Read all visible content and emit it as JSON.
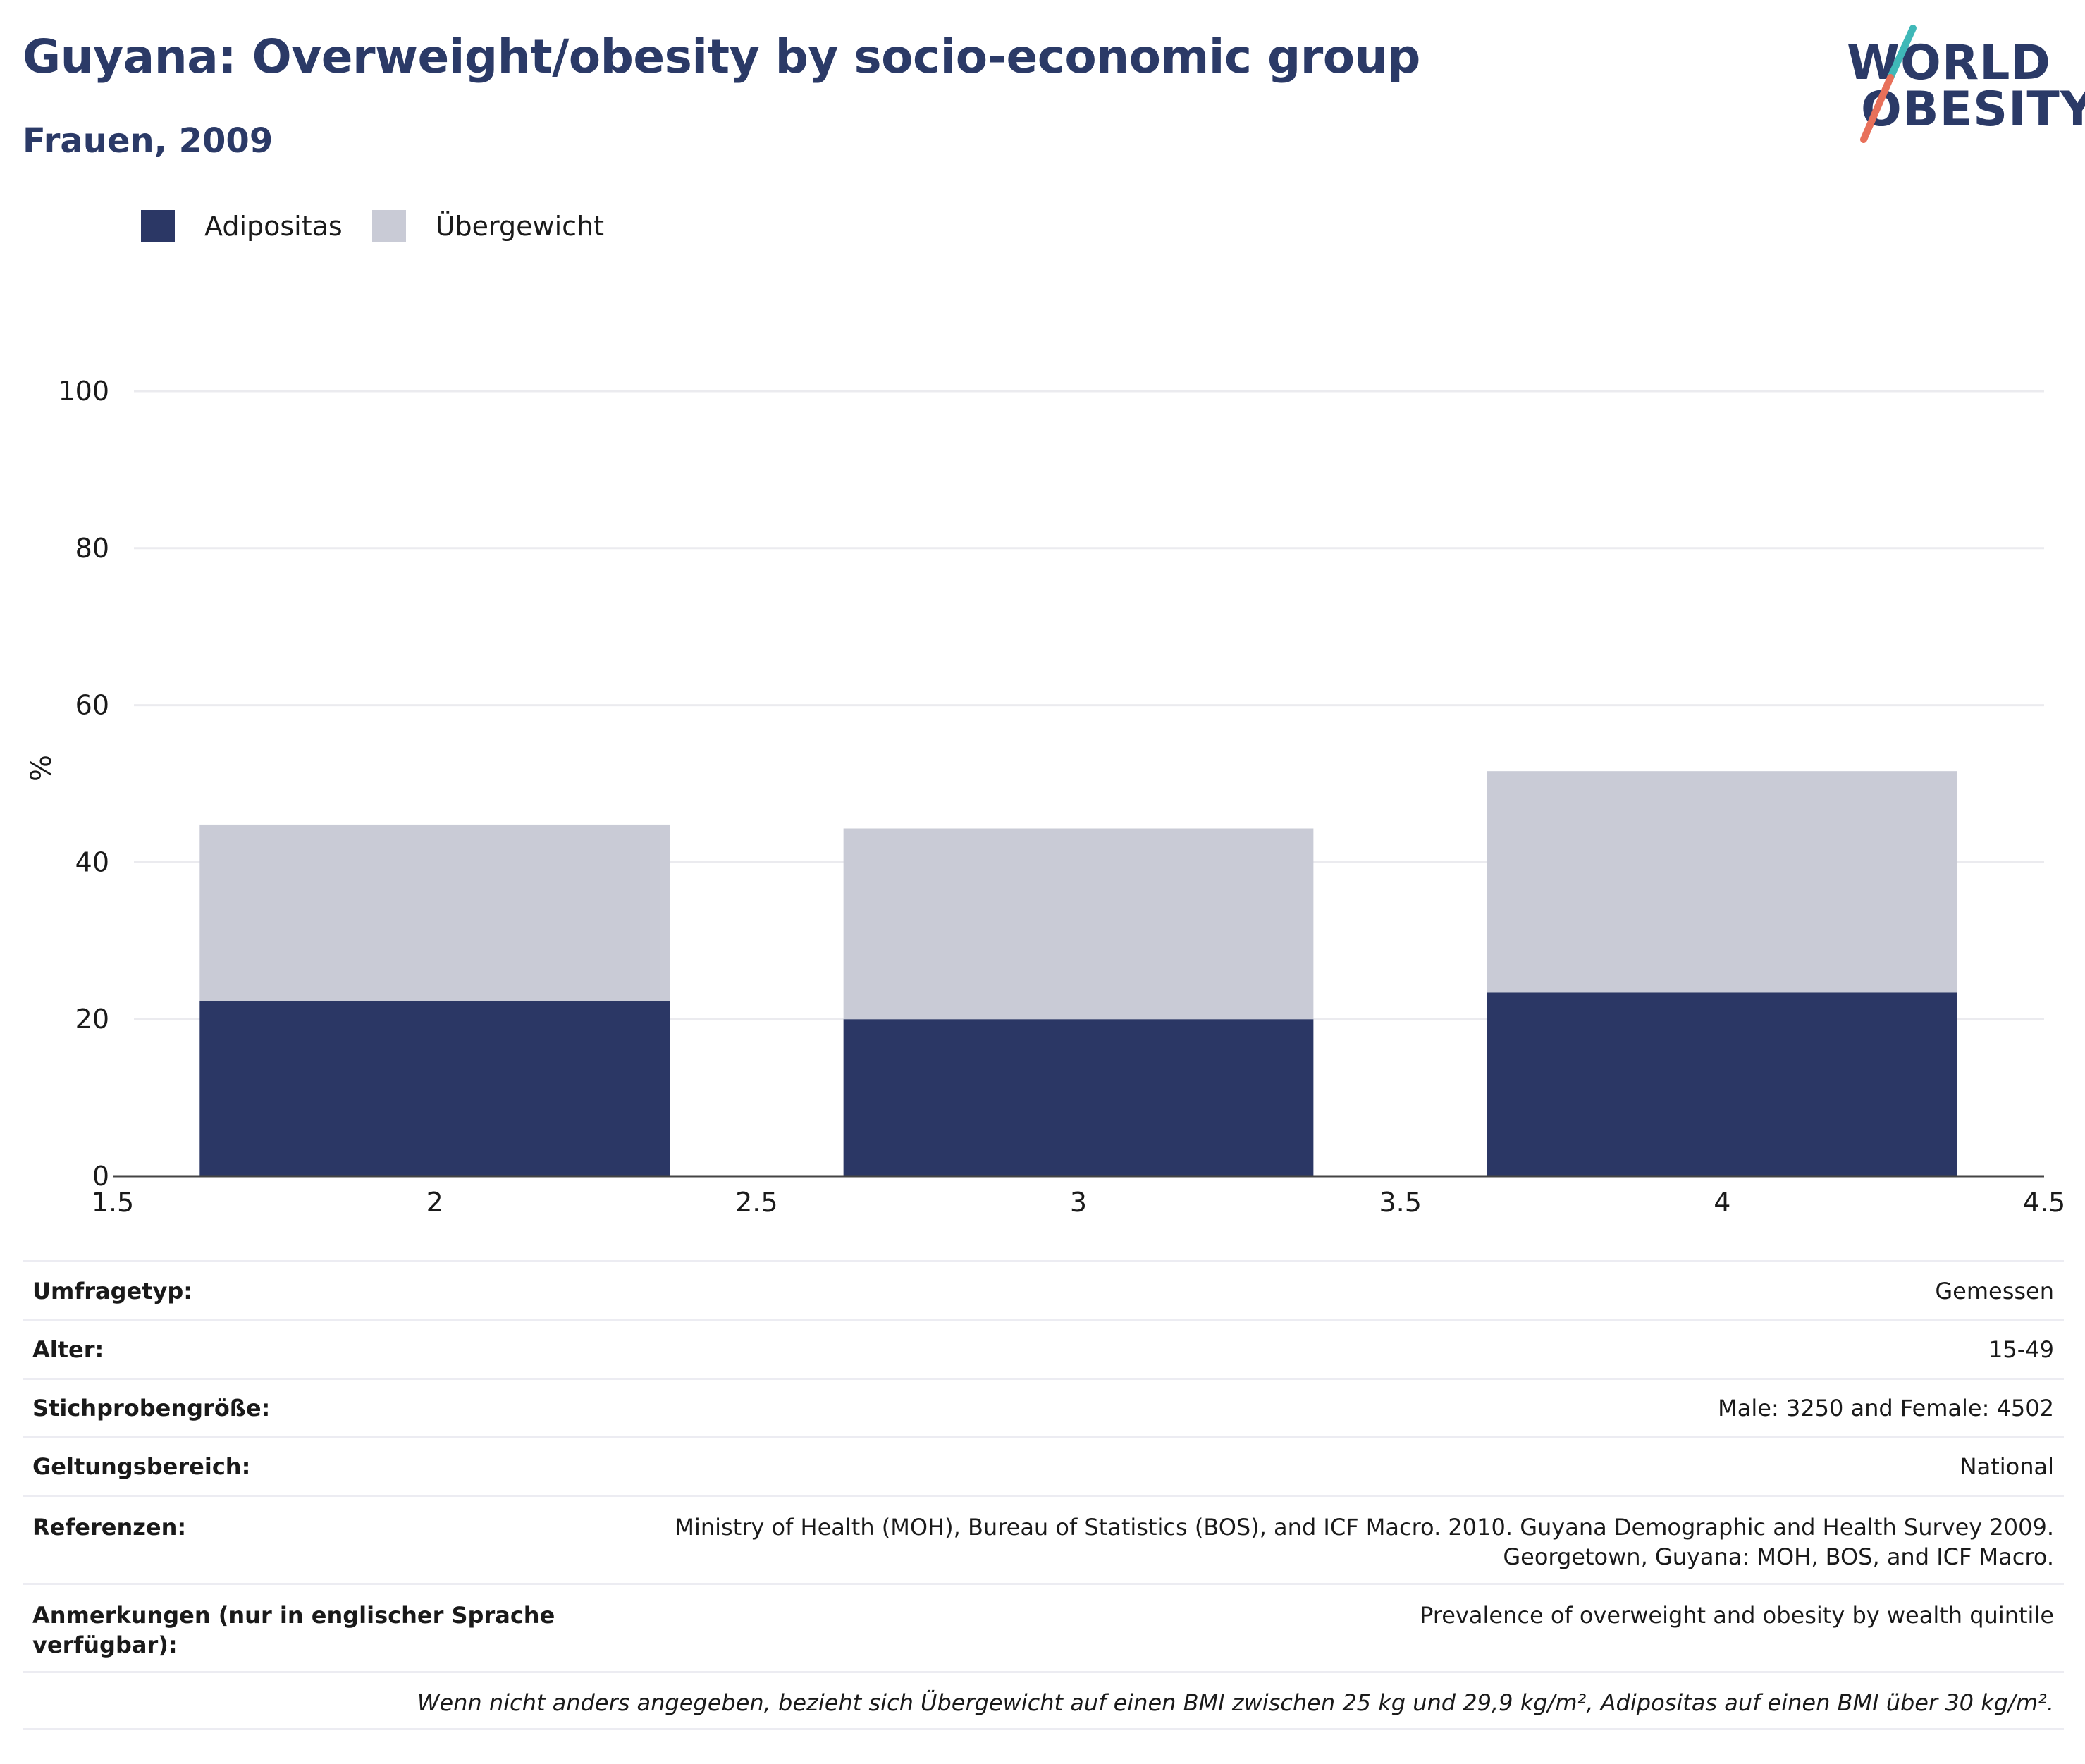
{
  "header": {
    "title": "Guyana: Overweight/obesity by socio-economic group",
    "subtitle": "Frauen, 2009",
    "logo_text_top": "WORLD",
    "logo_text_bottom": "OBESITY"
  },
  "colors": {
    "obesity": "#2b3765",
    "overweight": "#c9cbd6",
    "title": "#2b3a67",
    "logo_teal": "#3fb8b8",
    "logo_coral": "#e8705a"
  },
  "legend": [
    {
      "label": "Adipositas",
      "color": "#2b3765"
    },
    {
      "label": "Übergewicht",
      "color": "#c9cbd6"
    }
  ],
  "chart_data": {
    "type": "bar",
    "stacked": true,
    "x": [
      2,
      3,
      4
    ],
    "series": [
      {
        "name": "Adipositas",
        "values": [
          22.3,
          20.0,
          23.4
        ]
      },
      {
        "name": "Übergewicht",
        "values": [
          22.5,
          24.3,
          28.2
        ]
      }
    ],
    "totals": [
      44.8,
      44.3,
      51.6
    ],
    "ylabel": "%",
    "xlim": [
      1.5,
      4.5
    ],
    "ylim": [
      0,
      100
    ],
    "x_ticks": [
      "1.5",
      "2",
      "2.5",
      "3",
      "3.5",
      "4",
      "4.5"
    ],
    "y_ticks": [
      "0",
      "20",
      "40",
      "60",
      "80",
      "100"
    ],
    "grid": true,
    "legend_position": "top-left"
  },
  "meta": [
    {
      "key": "Umfragetyp:",
      "value": "Gemessen"
    },
    {
      "key": "Alter:",
      "value": "15-49"
    },
    {
      "key": "Stichprobengröße:",
      "value": "Male: 3250 and Female: 4502"
    },
    {
      "key": "Geltungsbereich:",
      "value": "National"
    },
    {
      "key": "Referenzen:",
      "value": "Ministry of Health (MOH), Bureau of Statistics (BOS), and ICF Macro. 2010. Guyana Demographic and Health Survey 2009. Georgetown, Guyana: MOH, BOS, and ICF Macro."
    },
    {
      "key": "Anmerkungen (nur in englischer Sprache verfügbar):",
      "value": "Prevalence of overweight and obesity by wealth quintile"
    }
  ],
  "footnote": "Wenn nicht anders angegeben, bezieht sich Übergewicht auf einen BMI zwischen 25 kg und 29,9 kg/m², Adipositas auf einen BMI über 30 kg/m²."
}
